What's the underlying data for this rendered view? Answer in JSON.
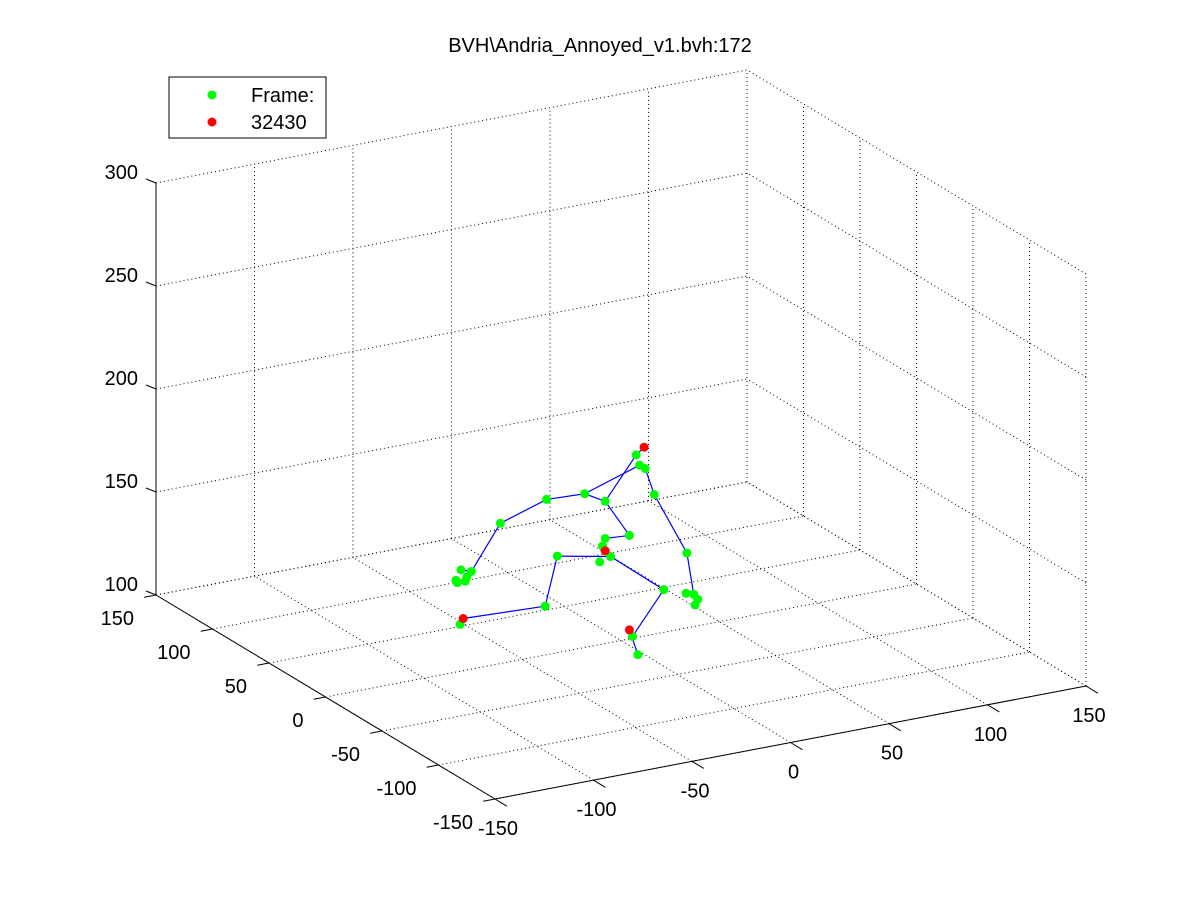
{
  "chart_data": {
    "type": "scatter",
    "title": "BVH\\Andria_Annoyed_v1.bvh:172",
    "xlabel": "",
    "ylabel": "",
    "zlabel": "",
    "projection": "3d",
    "grid": true,
    "legend_placement": "top-left",
    "xlim": [
      -150,
      150
    ],
    "ylim": [
      -150,
      150
    ],
    "zlim": [
      100,
      300
    ],
    "xticks": [
      "-150",
      "-100",
      "-50",
      "0",
      "50",
      "100",
      "150"
    ],
    "yticks": [
      "-150",
      "-100",
      "-50",
      "0",
      "50",
      "100",
      "150"
    ],
    "zticks": [
      "100",
      "150",
      "200",
      "250",
      "300"
    ],
    "legend": [
      "Frame:",
      "32430"
    ],
    "colors": {
      "marker_primary": "#00ff00",
      "marker_secondary": "#ff0000",
      "bones": "#0000ff"
    },
    "series": [
      {
        "name": "Frame:",
        "color": "#00ff00",
        "points": [
          [
            6,
            -6,
            186
          ],
          [
            6,
            -3,
            190
          ],
          [
            10,
            -4,
            183
          ],
          [
            -15,
            6,
            172
          ],
          [
            -4,
            7,
            166
          ],
          [
            -2,
            -11,
            155
          ],
          [
            -8,
            0,
            151
          ],
          [
            -10,
            -1,
            148
          ],
          [
            -12,
            -2,
            141
          ],
          [
            -28,
            17,
            168
          ],
          [
            -40,
            37,
            152
          ],
          [
            -53,
            40,
            130
          ],
          [
            -56,
            44,
            130
          ],
          [
            -59,
            42,
            125
          ],
          [
            -58,
            45,
            125
          ],
          [
            -55,
            42,
            125
          ],
          [
            -53,
            44,
            126
          ],
          [
            10,
            -12,
            173
          ],
          [
            26,
            -13,
            142
          ],
          [
            22,
            -26,
            127
          ],
          [
            21,
            -21,
            126
          ],
          [
            23,
            -28,
            125
          ],
          [
            21,
            -29,
            123
          ],
          [
            -3,
            4,
            140
          ],
          [
            -18,
            25,
            136
          ],
          [
            -27,
            20,
            115
          ],
          [
            -53,
            50,
            101
          ],
          [
            20,
            -3,
            122
          ],
          [
            11,
            9,
            97
          ],
          [
            8,
            -1,
            92
          ]
        ]
      },
      {
        "name": "32430",
        "color": "#ff0000",
        "points": [
          [
            10,
            -3,
            193
          ],
          [
            -8,
            0,
            145
          ],
          [
            -52,
            49,
            104
          ],
          [
            10,
            10,
            100
          ]
        ]
      }
    ],
    "bones": [
      [
        [
          -8,
          0,
          145
        ],
        [
          -10,
          -1,
          148
        ]
      ],
      [
        [
          -10,
          -1,
          148
        ],
        [
          -8,
          0,
          151
        ]
      ],
      [
        [
          -8,
          0,
          151
        ],
        [
          -2,
          -11,
          155
        ]
      ],
      [
        [
          -2,
          -11,
          155
        ],
        [
          -4,
          7,
          166
        ]
      ],
      [
        [
          -4,
          7,
          166
        ],
        [
          6,
          -3,
          190
        ]
      ],
      [
        [
          6,
          -3,
          190
        ],
        [
          10,
          -3,
          193
        ]
      ],
      [
        [
          -4,
          7,
          166
        ],
        [
          -15,
          6,
          172
        ]
      ],
      [
        [
          -15,
          6,
          172
        ],
        [
          6,
          -6,
          186
        ]
      ],
      [
        [
          6,
          -6,
          186
        ],
        [
          10,
          -4,
          183
        ]
      ],
      [
        [
          -15,
          6,
          172
        ],
        [
          -28,
          17,
          168
        ]
      ],
      [
        [
          -28,
          17,
          168
        ],
        [
          -40,
          37,
          152
        ]
      ],
      [
        [
          -40,
          37,
          152
        ],
        [
          -53,
          40,
          130
        ]
      ],
      [
        [
          -53,
          40,
          130
        ],
        [
          -56,
          44,
          130
        ]
      ],
      [
        [
          10,
          -4,
          183
        ],
        [
          10,
          -12,
          173
        ]
      ],
      [
        [
          10,
          -12,
          173
        ],
        [
          26,
          -13,
          142
        ]
      ],
      [
        [
          26,
          -13,
          142
        ],
        [
          22,
          -26,
          127
        ]
      ],
      [
        [
          -8,
          0,
          145
        ],
        [
          -3,
          4,
          140
        ]
      ],
      [
        [
          -3,
          4,
          140
        ],
        [
          -18,
          25,
          136
        ]
      ],
      [
        [
          -18,
          25,
          136
        ],
        [
          -27,
          20,
          115
        ]
      ],
      [
        [
          -27,
          20,
          115
        ],
        [
          -52,
          49,
          104
        ]
      ],
      [
        [
          -52,
          49,
          104
        ],
        [
          -53,
          50,
          101
        ]
      ],
      [
        [
          -3,
          4,
          140
        ],
        [
          20,
          -3,
          122
        ]
      ],
      [
        [
          20,
          -3,
          122
        ],
        [
          11,
          9,
          97
        ]
      ],
      [
        [
          11,
          9,
          97
        ],
        [
          10,
          10,
          100
        ]
      ],
      [
        [
          10,
          10,
          100
        ],
        [
          8,
          -1,
          92
        ]
      ]
    ]
  }
}
